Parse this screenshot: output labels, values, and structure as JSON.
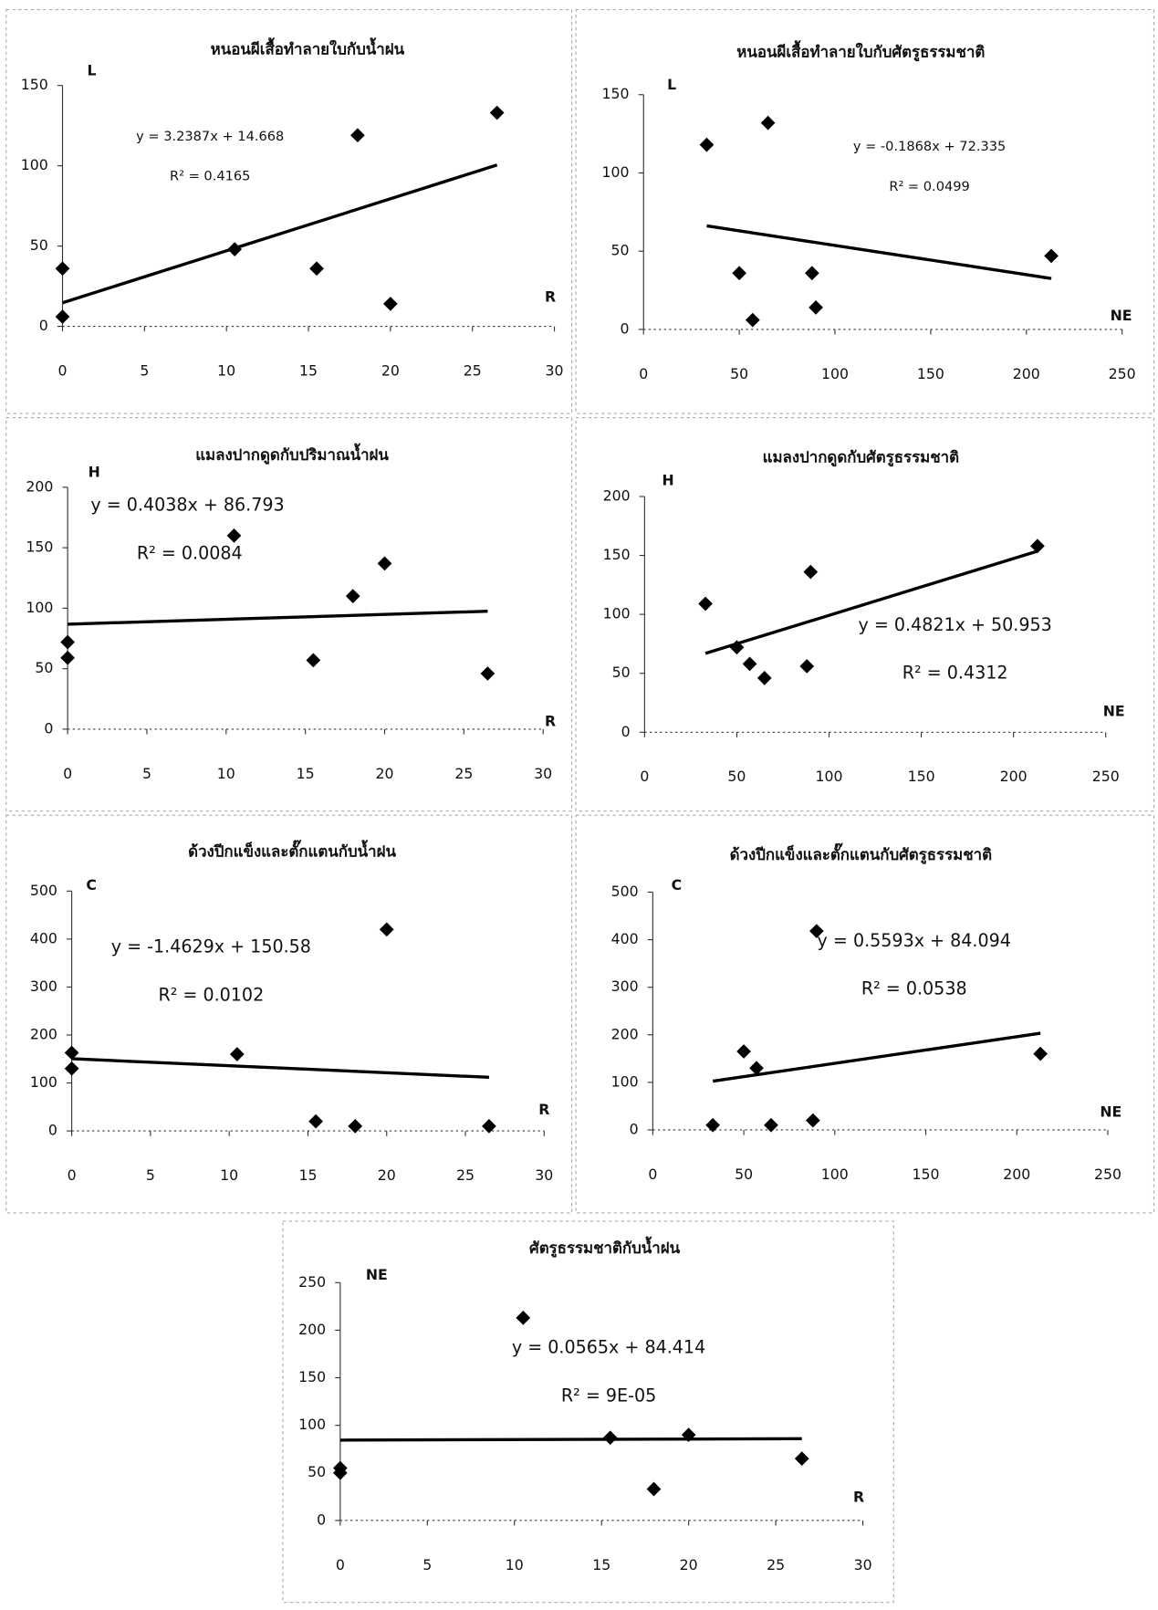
{
  "chart_data": [
    {
      "type": "scatter",
      "title": "หนอนผีเสื้อทำลายใบกับน้ำฝน",
      "xlabel": "R",
      "ylabel": "L",
      "equation": "y = 3.2387x + 14.668",
      "r_squared": "R² = 0.4165",
      "trendline": {
        "slope": 3.2387,
        "intercept": 14.668
      },
      "x": [
        0,
        0,
        10.5,
        15.5,
        18,
        20,
        26.5
      ],
      "values": [
        36,
        6,
        48,
        36,
        119,
        14,
        133
      ],
      "xlim": [
        0,
        30
      ],
      "xticks": [
        0,
        5,
        10,
        15,
        20,
        25,
        30
      ],
      "ylim": [
        0,
        150
      ],
      "yticks": [
        0,
        50,
        100,
        150
      ],
      "color": "#000000"
    },
    {
      "type": "scatter",
      "title": "หนอนผีเสื้อทำลายใบกับศัตรูธรรมชาติ",
      "xlabel": "NE",
      "ylabel": "L",
      "equation": "y = -0.1868x + 72.335",
      "r_squared": "R² = 0.0499",
      "trendline": {
        "slope": -0.1868,
        "intercept": 72.335
      },
      "x": [
        33,
        50,
        57,
        65,
        88,
        90,
        213
      ],
      "values": [
        118,
        36,
        6,
        132,
        36,
        14,
        47
      ],
      "xlim": [
        0,
        250
      ],
      "xticks": [
        0,
        50,
        100,
        150,
        200,
        250
      ],
      "ylim": [
        0,
        150
      ],
      "yticks": [
        0,
        50,
        100,
        150
      ],
      "color": "#000000"
    },
    {
      "type": "scatter",
      "title": "แมลงปากดูดกับปริมาณน้ำฝน",
      "xlabel": "R",
      "ylabel": "H",
      "equation": "y = 0.4038x + 86.793",
      "r_squared": "R² = 0.0084",
      "trendline": {
        "slope": 0.4038,
        "intercept": 86.793
      },
      "x": [
        0,
        0,
        10.5,
        15.5,
        18,
        20,
        26.5
      ],
      "values": [
        72,
        59,
        160,
        57,
        110,
        137,
        46
      ],
      "xlim": [
        0,
        30
      ],
      "xticks": [
        0,
        5,
        10,
        15,
        20,
        25,
        30
      ],
      "ylim": [
        0,
        200
      ],
      "yticks": [
        0,
        50,
        100,
        150,
        200
      ],
      "color": "#000000"
    },
    {
      "type": "scatter",
      "title": "แมลงปากดูดกับศัตรูธรรมชาติ",
      "xlabel": "NE",
      "ylabel": "H",
      "equation": "y = 0.4821x + 50.953",
      "r_squared": "R² = 0.4312",
      "trendline": {
        "slope": 0.4821,
        "intercept": 50.953
      },
      "x": [
        33,
        50,
        57,
        65,
        88,
        90,
        213
      ],
      "values": [
        109,
        72,
        58,
        46,
        56,
        136,
        158
      ],
      "xlim": [
        0,
        250
      ],
      "xticks": [
        0,
        50,
        100,
        150,
        200,
        250
      ],
      "ylim": [
        0,
        200
      ],
      "yticks": [
        0,
        50,
        100,
        150,
        200
      ],
      "color": "#000000"
    },
    {
      "type": "scatter",
      "title": "ด้วงปีกแข็งและตั๊กแตนกับน้ำฝน",
      "xlabel": "R",
      "ylabel": "C",
      "equation": "y = -1.4629x + 150.58",
      "r_squared": "R² = 0.0102",
      "trendline": {
        "slope": -1.4629,
        "intercept": 150.58
      },
      "x": [
        0,
        0,
        10.5,
        15.5,
        18,
        20,
        26.5
      ],
      "values": [
        163,
        130,
        160,
        20,
        10,
        420,
        10
      ],
      "xlim": [
        0,
        30
      ],
      "xticks": [
        0,
        5,
        10,
        15,
        20,
        25,
        30
      ],
      "ylim": [
        0,
        500
      ],
      "yticks": [
        0,
        100,
        200,
        300,
        400,
        500
      ],
      "color": "#000000"
    },
    {
      "type": "scatter",
      "title": "ด้วงปีกแข็งและตั๊กแตนกับศัตรูธรรมชาติ",
      "xlabel": "NE",
      "ylabel": "C",
      "equation": "y = 0.5593x + 84.094",
      "r_squared": "R² = 0.0538",
      "trendline": {
        "slope": 0.5593,
        "intercept": 84.094
      },
      "x": [
        33,
        50,
        57,
        65,
        88,
        90,
        213
      ],
      "values": [
        10,
        165,
        130,
        10,
        20,
        418,
        160
      ],
      "xlim": [
        0,
        250
      ],
      "xticks": [
        0,
        50,
        100,
        150,
        200,
        250
      ],
      "ylim": [
        0,
        500
      ],
      "yticks": [
        0,
        100,
        200,
        300,
        400,
        500
      ],
      "color": "#000000"
    },
    {
      "type": "scatter",
      "title": "ศัตรูธรรมชาติกับน้ำฝน",
      "xlabel": "R",
      "ylabel": "NE",
      "equation": "y = 0.0565x + 84.414",
      "r_squared": "R² = 9E-05",
      "trendline": {
        "slope": 0.0565,
        "intercept": 84.414
      },
      "x": [
        0,
        0,
        10.5,
        15.5,
        18,
        20,
        26.5
      ],
      "values": [
        55,
        50,
        213,
        87,
        33,
        90,
        65
      ],
      "xlim": [
        0,
        30
      ],
      "xticks": [
        0,
        5,
        10,
        15,
        20,
        25,
        30
      ],
      "ylim": [
        0,
        250
      ],
      "yticks": [
        0,
        50,
        100,
        150,
        200,
        250
      ],
      "color": "#000000"
    }
  ]
}
